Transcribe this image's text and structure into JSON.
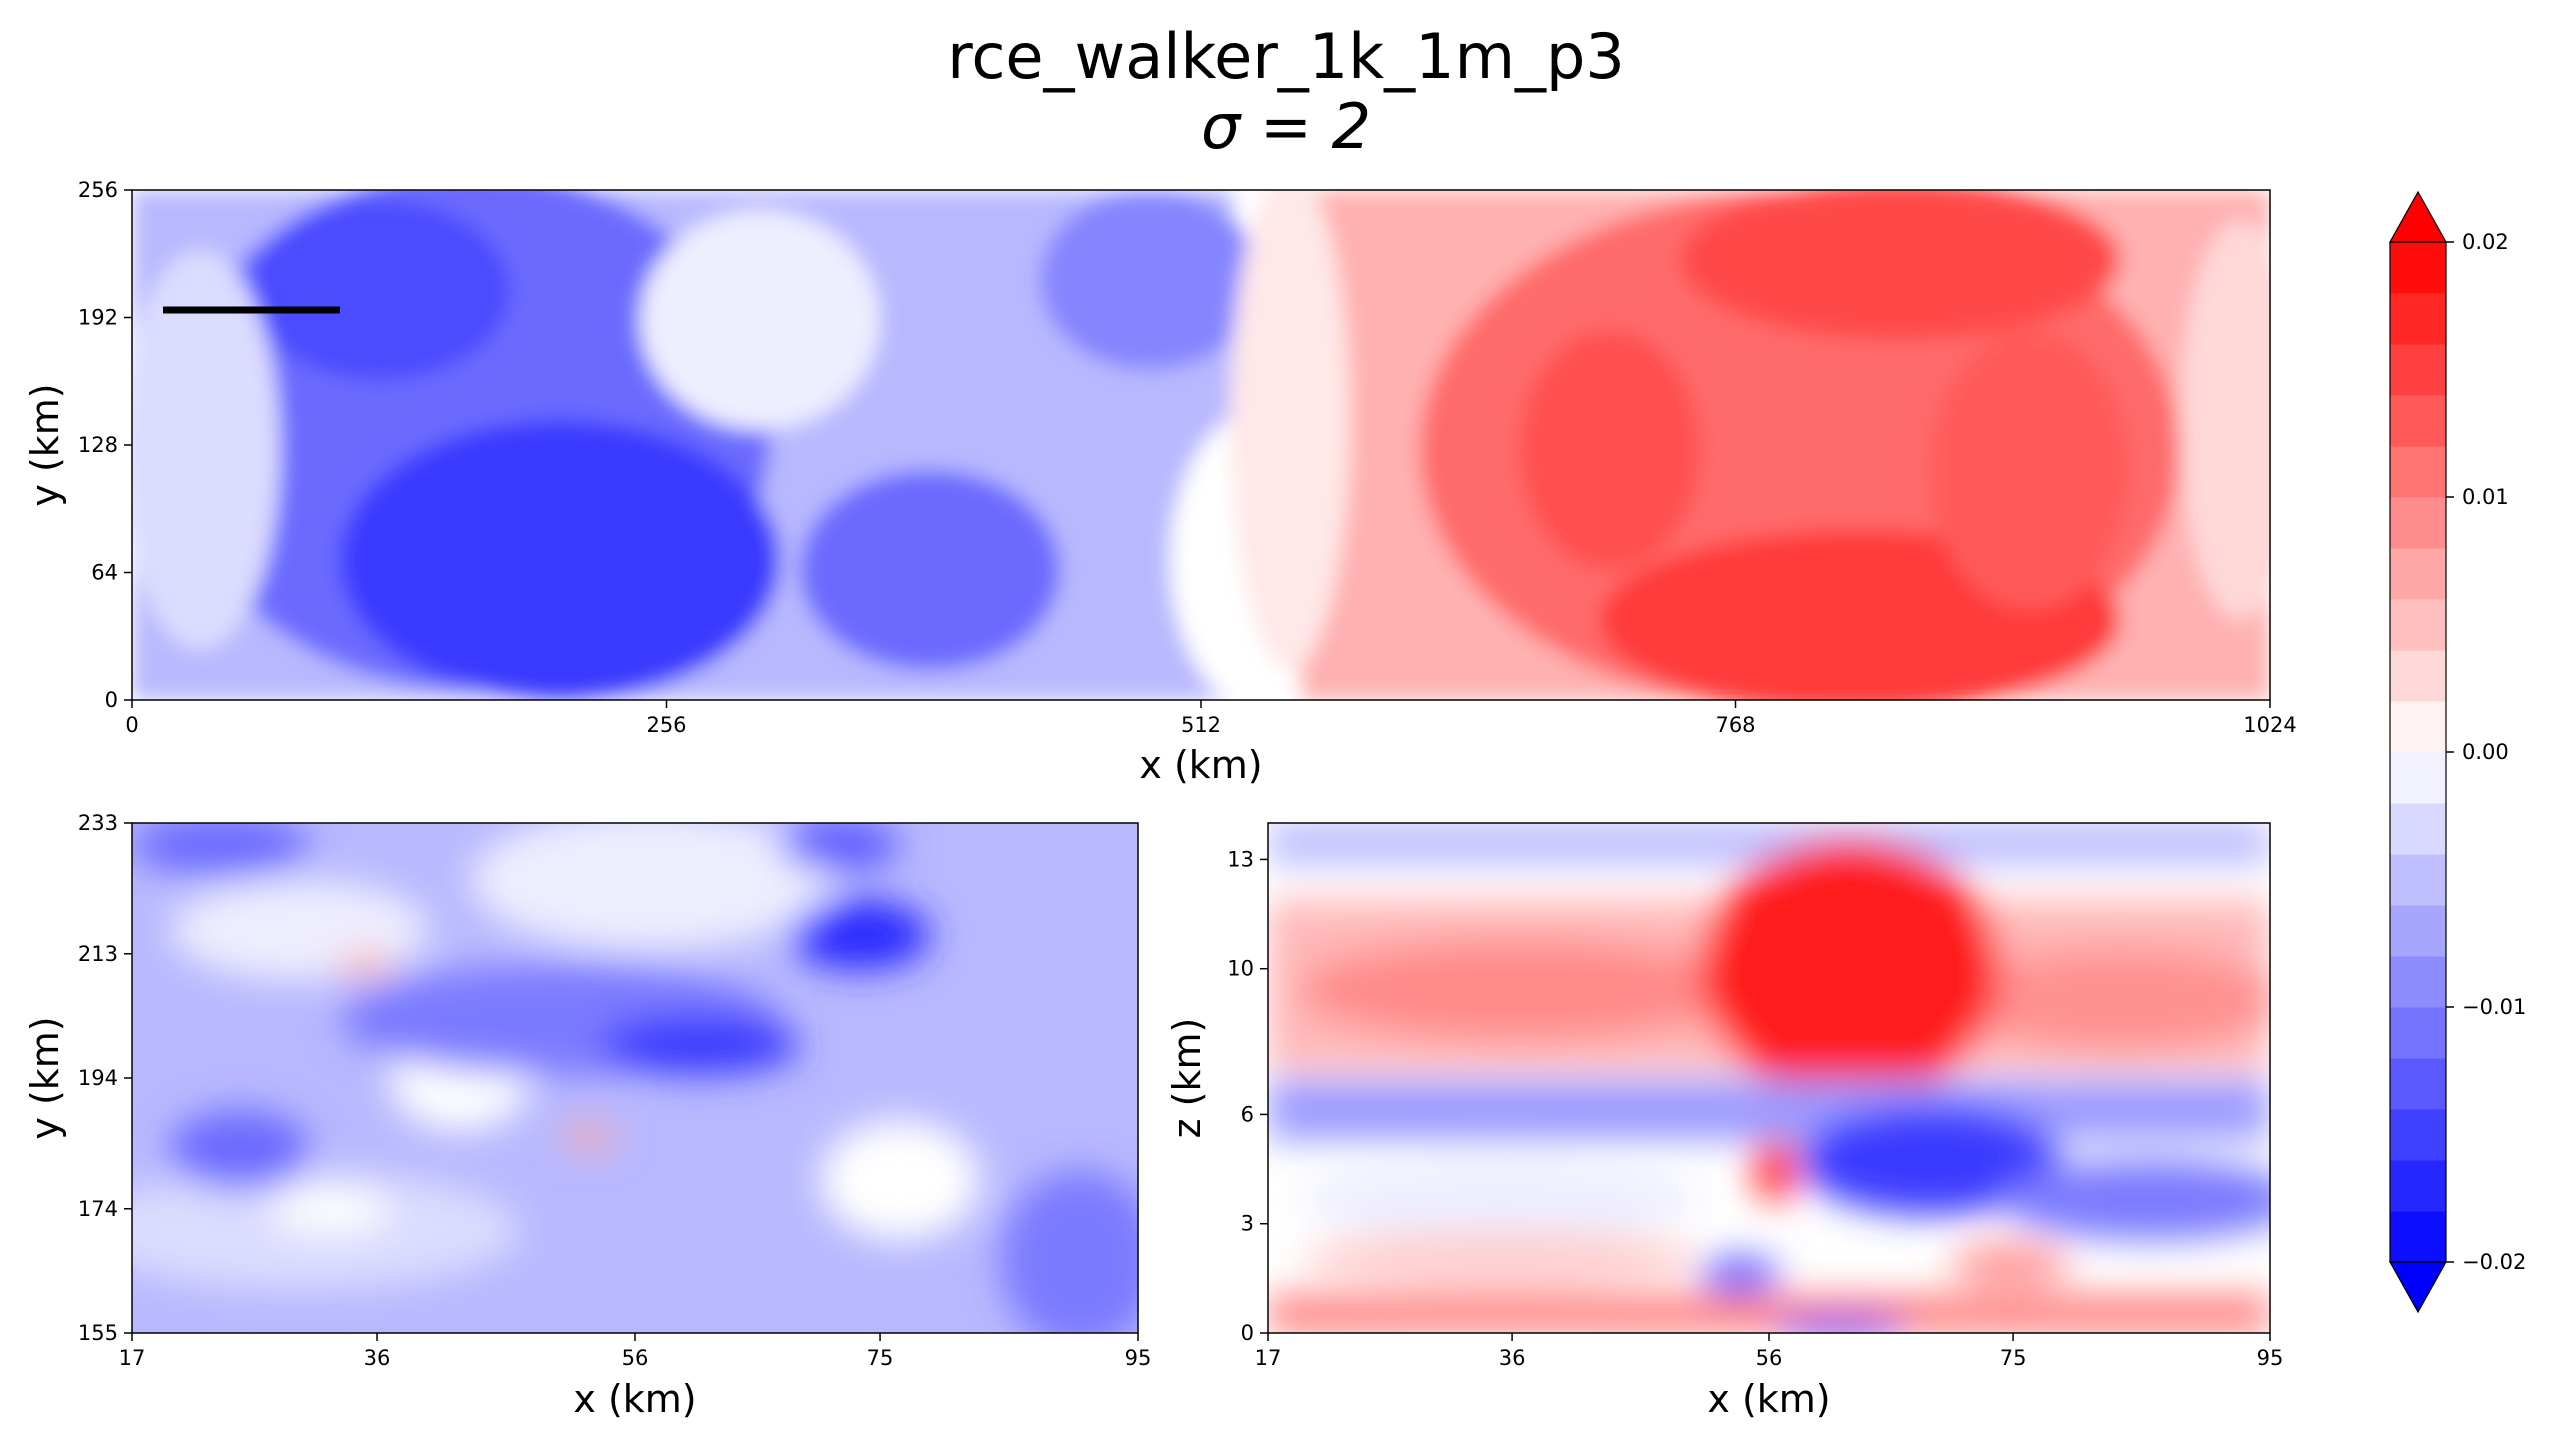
{
  "chart_data": [
    {
      "type": "heatmap",
      "title_line1": "rce_walker_1k_1m_p3",
      "title_line2": "σ = 2",
      "xlabel": "x (km)",
      "ylabel": "y (km)",
      "xlim": [
        0,
        1024
      ],
      "ylim": [
        0,
        256
      ],
      "xticks": [
        "0",
        "256",
        "512",
        "768",
        "1024"
      ],
      "yticks": [
        "0",
        "64",
        "128",
        "192",
        "256"
      ],
      "annotation": "black horizontal segment marking the cross-section near y = 194 km, x ≈ 17–95 km",
      "field_description": "negative (blue) anomalies over x < ~560 km, positive (red) anomalies over x > ~560 km"
    },
    {
      "type": "heatmap",
      "xlabel": "x (km)",
      "ylabel": "y (km)",
      "xlim": [
        17,
        95
      ],
      "ylim": [
        155,
        233
      ],
      "xticks": [
        "17",
        "36",
        "56",
        "75",
        "95"
      ],
      "yticks": [
        "155",
        "174",
        "194",
        "213",
        "233"
      ]
    },
    {
      "type": "heatmap",
      "xlabel": "x (km)",
      "ylabel": "z (km)",
      "xlim": [
        17,
        95
      ],
      "ylim": [
        0,
        14
      ],
      "xticks": [
        "17",
        "36",
        "56",
        "75",
        "95"
      ],
      "yticks": [
        "0",
        "3",
        "6",
        "10",
        "13"
      ]
    }
  ],
  "colorbar": {
    "min": -0.02,
    "max": 0.02,
    "ticks": [
      "0.02",
      "0.01",
      "0.00",
      "−0.01",
      "−0.02"
    ],
    "extend": "both",
    "cmap": "bwr",
    "levels": 20
  },
  "colors": {
    "low": "#0000ff",
    "mid": "#ffffff",
    "high": "#ff0000"
  }
}
